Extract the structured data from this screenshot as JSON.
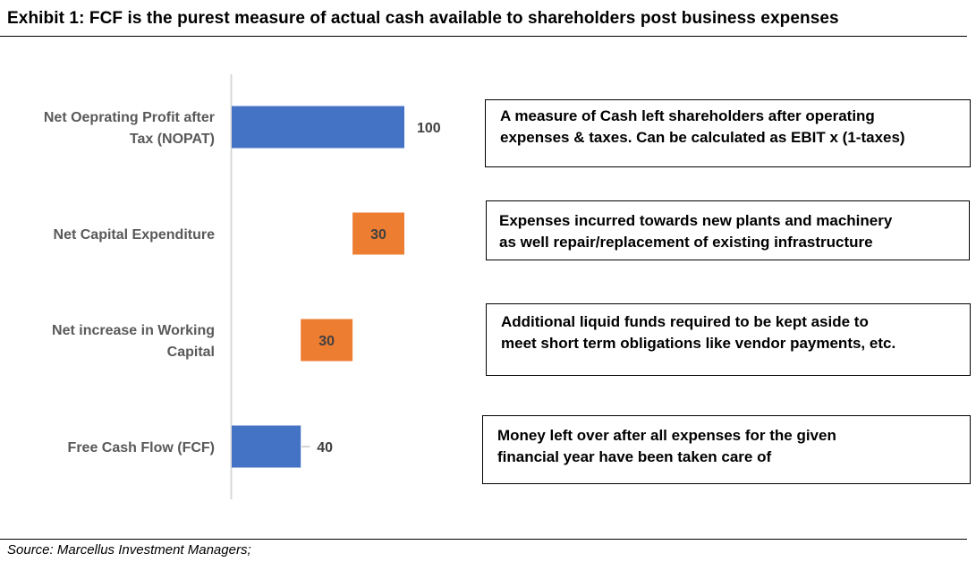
{
  "title": "Exhibit 1: FCF is the purest measure of actual cash available to shareholders post business expenses",
  "source": "Source: Marcellus Investment Managers;",
  "chart_data": {
    "type": "bar",
    "orientation": "horizontal-waterfall",
    "categories": [
      [
        "Net Oeprating Profit after",
        "Tax (NOPAT)"
      ],
      [
        "Net Capital Expenditure"
      ],
      [
        "Net increase in Working",
        "Capital"
      ],
      [
        "Free Cash Flow (FCF)"
      ]
    ],
    "values": [
      100,
      30,
      30,
      40
    ],
    "starts": [
      0,
      70,
      40,
      0
    ],
    "colors": [
      "#4472C4",
      "#ED7D31",
      "#ED7D31",
      "#4472C4"
    ],
    "value_label_position": [
      "outside",
      "inside",
      "inside",
      "outside"
    ],
    "xlim": [
      0,
      100
    ],
    "axis_labels_shown": false,
    "grid": false
  },
  "notes": [
    {
      "line1": "A measure of Cash left shareholders after operating",
      "line2": "expenses & taxes. Can be calculated as EBIT x (1-taxes)"
    },
    {
      "line1": "Expenses incurred towards new plants and machinery",
      "line2": "as well repair/replacement of existing infrastructure"
    },
    {
      "line1": "Additional liquid funds required to be kept aside to",
      "line2": "meet short term obligations like vendor payments, etc."
    },
    {
      "line1": "Money left over after all expenses for the given",
      "line2": "financial year have been taken care of"
    }
  ]
}
